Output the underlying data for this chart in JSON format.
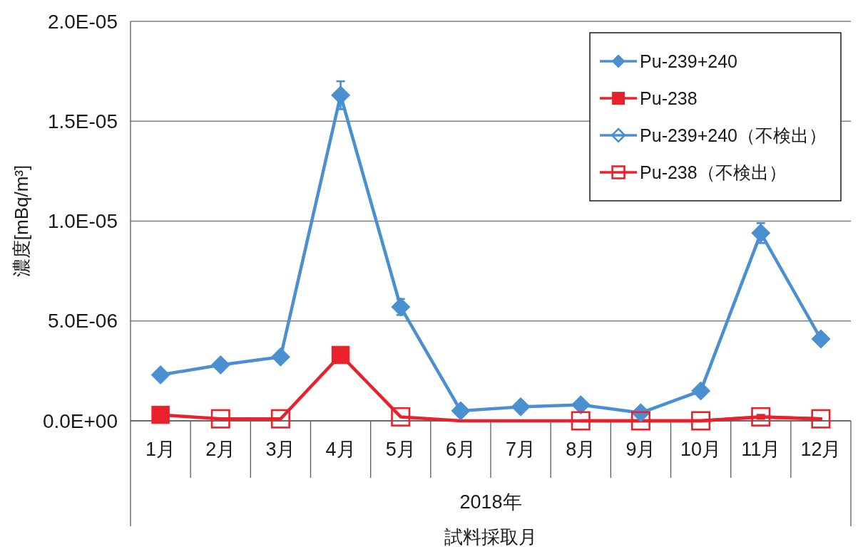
{
  "chart_data": {
    "type": "line",
    "ylabel": "濃度[mBq/m³]",
    "xlabel": "試料採取月",
    "annotations": [
      "2018年"
    ],
    "categories": [
      "1月",
      "2月",
      "3月",
      "4月",
      "5月",
      "6月",
      "7月",
      "8月",
      "9月",
      "10月",
      "11月",
      "12月"
    ],
    "ylim": [
      0,
      2e-05
    ],
    "yticks": [
      {
        "value": 0,
        "label": "0.0E+00"
      },
      {
        "value": 5e-06,
        "label": "5.0E-06"
      },
      {
        "value": 1e-05,
        "label": "1.0E-05"
      },
      {
        "value": 1.5e-05,
        "label": "1.5E-05"
      },
      {
        "value": 2e-05,
        "label": "2.0E-05"
      }
    ],
    "grid": "y",
    "legend": "top right",
    "series": [
      {
        "color": "#e8212b",
        "marker": "none",
        "values": [
          3e-07,
          1e-07,
          1e-07,
          3.3e-06,
          2e-07,
          0,
          0,
          0,
          0,
          0,
          2e-07,
          1e-07
        ]
      },
      {
        "name": "Pu-239+240",
        "color": "#4a90d0",
        "marker": "diamond",
        "values": [
          2.3e-06,
          2.8e-06,
          3.2e-06,
          1.63e-05,
          5.7e-06,
          5e-07,
          7e-07,
          8e-07,
          4e-07,
          1.5e-06,
          9.4e-06,
          4.1e-06
        ],
        "errors": [
          null,
          null,
          null,
          7e-07,
          4e-07,
          null,
          null,
          null,
          null,
          null,
          5e-07,
          null
        ]
      },
      {
        "name": "Pu-238",
        "color": "#e8212b",
        "marker": "square",
        "values": [
          3e-07,
          null,
          null,
          3.3e-06,
          null,
          null,
          null,
          null,
          null,
          null,
          null,
          null
        ]
      },
      {
        "name": "Pu-239+240（不検出）",
        "color": "#4a90d0",
        "marker": "diamond-open",
        "values": [
          null,
          null,
          null,
          null,
          null,
          null,
          null,
          null,
          null,
          null,
          null,
          null
        ]
      },
      {
        "name": "Pu-238（不検出）",
        "color": "#e8212b",
        "marker": "square-open",
        "values": [
          null,
          1e-07,
          1e-07,
          null,
          2e-07,
          null,
          null,
          0,
          0,
          0,
          2e-07,
          1e-07
        ],
        "errors": [
          null,
          null,
          null,
          null,
          null,
          null,
          null,
          null,
          null,
          null,
          1e-07,
          null
        ]
      }
    ]
  }
}
